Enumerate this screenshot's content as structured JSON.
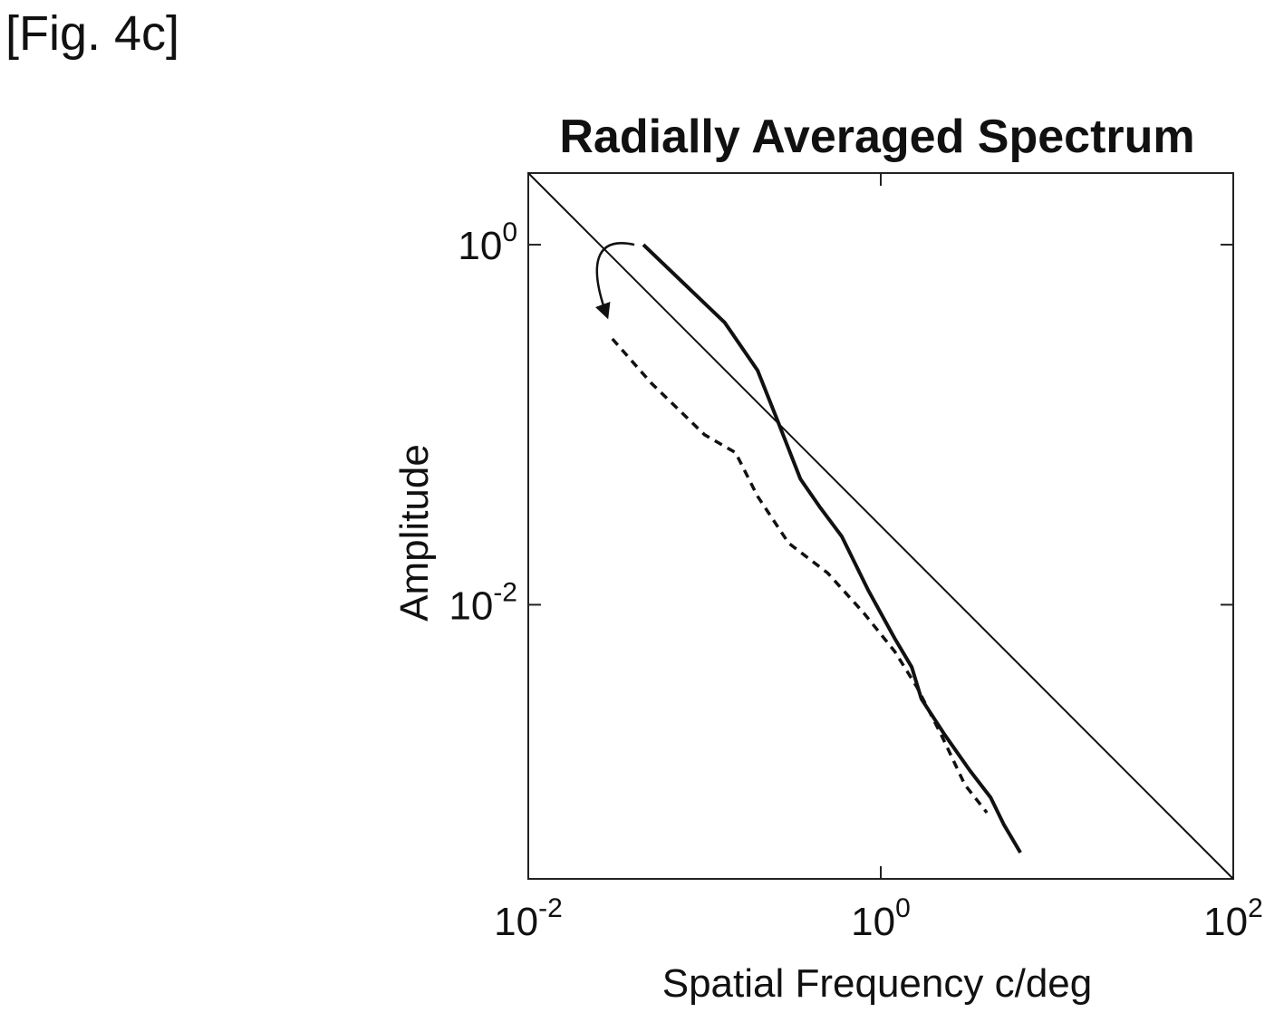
{
  "figure_label": "[Fig. 4c]",
  "chart_data": {
    "type": "line",
    "title": "Radially Averaged Spectrum",
    "xlabel": "Spatial Frequency c/deg",
    "ylabel": "Amplitude",
    "xscale": "log",
    "yscale": "log",
    "xlim": [
      0.01,
      100
    ],
    "ylim": [
      0.0003,
      2.5
    ],
    "x_ticks": [
      {
        "value": 0.01,
        "base": "10",
        "exp": "-2"
      },
      {
        "value": 1,
        "base": "10",
        "exp": "0"
      },
      {
        "value": 100,
        "base": "10",
        "exp": "2"
      }
    ],
    "y_ticks": [
      {
        "value": 1,
        "base": "10",
        "exp": "0"
      },
      {
        "value": 0.01,
        "base": "10",
        "exp": "-2"
      }
    ],
    "grid": false,
    "legend": "none",
    "series": [
      {
        "style": "reference-thin-solid",
        "x": [
          0.01,
          100
        ],
        "y": [
          2.5,
          0.0003
        ]
      },
      {
        "style": "thick-solid",
        "x": [
          0.045,
          0.13,
          0.2,
          0.26,
          0.35,
          0.45,
          0.6,
          0.85,
          1.2,
          1.5,
          1.7,
          2.3,
          3.2,
          4.2,
          5.0,
          6.2
        ],
        "y": [
          1.0,
          0.37,
          0.2,
          0.105,
          0.05,
          0.035,
          0.024,
          0.012,
          0.0065,
          0.0045,
          0.003,
          0.0019,
          0.0012,
          0.00085,
          0.0006,
          0.00042
        ]
      },
      {
        "style": "dashed",
        "x": [
          0.03,
          0.05,
          0.1,
          0.15,
          0.2,
          0.3,
          0.5,
          0.8,
          1.2,
          1.6,
          2.2,
          3.0,
          4.0
        ],
        "y": [
          0.3,
          0.17,
          0.088,
          0.07,
          0.04,
          0.022,
          0.015,
          0.009,
          0.0055,
          0.0035,
          0.0019,
          0.001,
          0.0007
        ]
      }
    ],
    "annotation": {
      "type": "curved-arrow",
      "from": [
        0.04,
        1.0
      ],
      "to": [
        0.028,
        0.4
      ]
    }
  }
}
